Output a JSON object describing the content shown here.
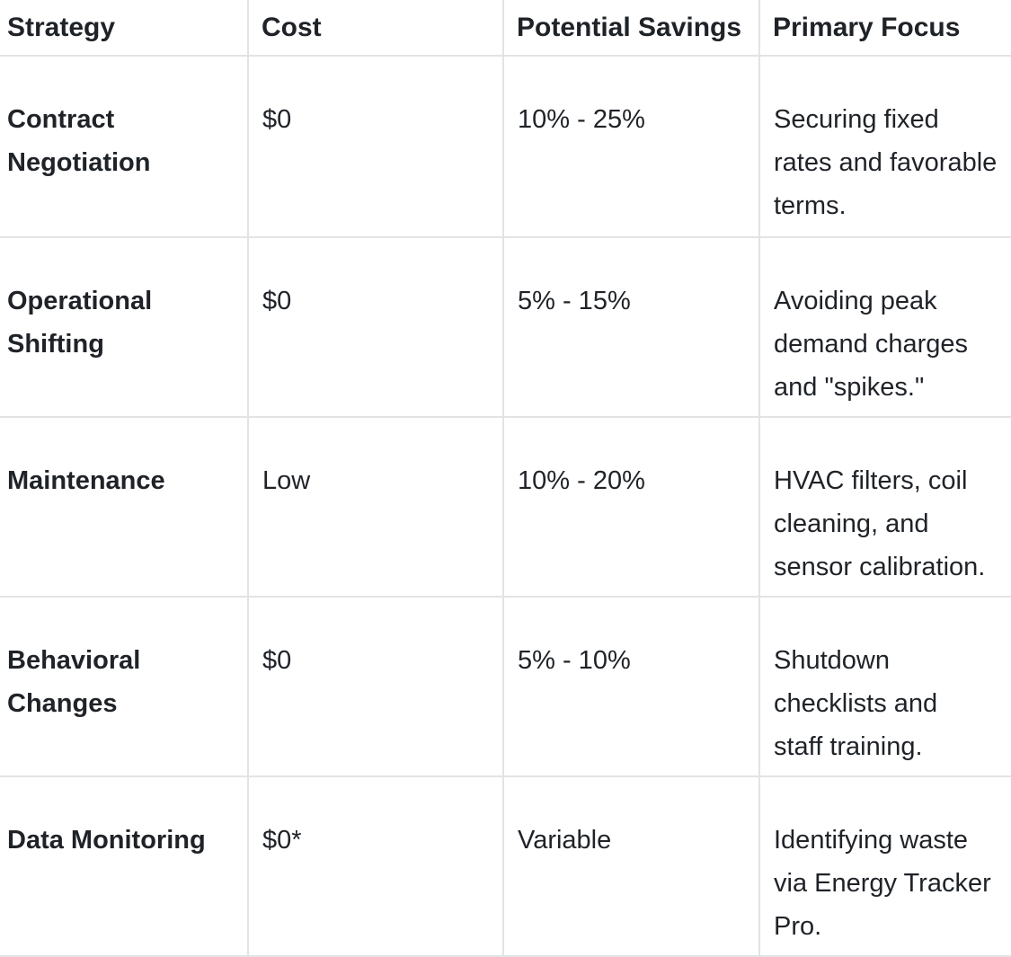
{
  "table": {
    "columns": [
      {
        "key": "strategy",
        "label": "Strategy"
      },
      {
        "key": "cost",
        "label": "Cost"
      },
      {
        "key": "savings",
        "label": "Potential Savings"
      },
      {
        "key": "focus",
        "label": "Primary Focus"
      }
    ],
    "rows": [
      {
        "strategy": "Contract\nNegotiation",
        "cost": "$0",
        "savings": "10% - 25%",
        "focus": "Securing fixed\nrates and favorable\nterms."
      },
      {
        "strategy": "Operational\nShifting",
        "cost": "$0",
        "savings": "5% - 15%",
        "focus": "Avoiding peak\ndemand charges\nand \"spikes.\""
      },
      {
        "strategy": "Maintenance",
        "cost": "Low",
        "savings": "10% - 20%",
        "focus": "HVAC filters, coil\ncleaning, and\nsensor calibration."
      },
      {
        "strategy": "Behavioral\nChanges",
        "cost": "$0",
        "savings": "5% - 10%",
        "focus": "Shutdown\nchecklists and\nstaff training."
      },
      {
        "strategy": "Data Monitoring",
        "cost": "$0*",
        "savings": "Variable",
        "focus": "Identifying waste\nvia Energy Tracker\nPro."
      }
    ]
  },
  "colors": {
    "text": "#1f2328",
    "border": "#e2e3e5",
    "background": "#ffffff"
  }
}
